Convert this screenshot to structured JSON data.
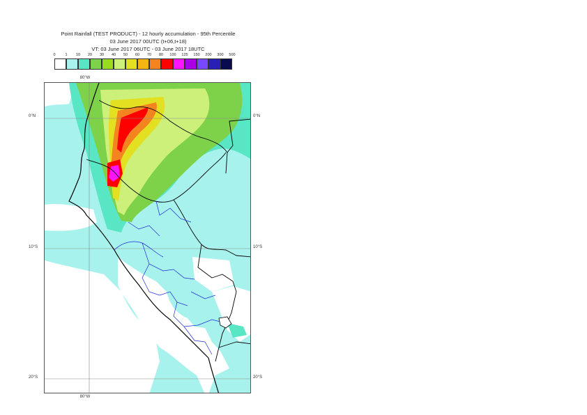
{
  "title": {
    "line1": "Point Rainfall (TEST PRODUCT) - 12 hourly accumulation - 95th Percentile",
    "line2": "03 June 2017 00UTC (t+06,t+18)",
    "line3": "VT: 03 June 2017 06UTC - 03 June 2017 18UTC"
  },
  "colorbar": {
    "ticks": [
      "0",
      "1",
      "10",
      "20",
      "30",
      "40",
      "50",
      "60",
      "70",
      "80",
      "100",
      "125",
      "150",
      "200",
      "300",
      "500"
    ],
    "colors": [
      "#ffffff",
      "#a8f2ee",
      "#58e6c4",
      "#7ed24a",
      "#98dc20",
      "#ccf07a",
      "#e2e020",
      "#f4b414",
      "#f48420",
      "#ff0000",
      "#ff14ff",
      "#aa00e6",
      "#7848ff",
      "#2820b4",
      "#0a0a50"
    ]
  },
  "map": {
    "lat_labels": [
      {
        "text": "0°N",
        "lat": 0
      },
      {
        "text": "10°S",
        "lat": -10
      },
      {
        "text": "20°S",
        "lat": -20
      }
    ],
    "lon_labels": [
      {
        "text": "80°W",
        "lon": -80
      }
    ],
    "extent": {
      "lon_min": -83,
      "lon_max": -68.3,
      "lat_min": -21.2,
      "lat_max": 2.7
    },
    "colors": {
      "ocean_light": "#a8f2ee",
      "no_rain": "#ffffff",
      "moderate": "#58e6c4",
      "green": "#7ed24a",
      "yellow_green": "#ccf07a",
      "orange": "#f48420",
      "red": "#ff0000",
      "magenta": "#ff14ff"
    }
  }
}
